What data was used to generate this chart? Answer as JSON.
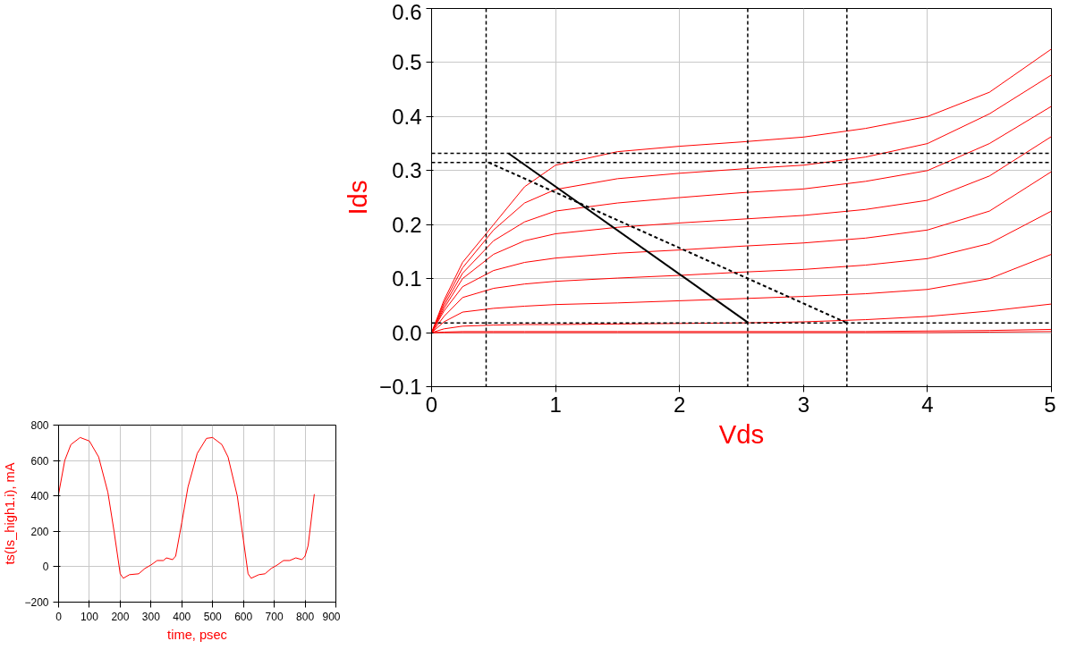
{
  "chart_data": [
    {
      "type": "line",
      "xlabel": "Vds",
      "ylabel": "Ids",
      "xlim": [
        0,
        5
      ],
      "ylim": [
        -0.1,
        0.6
      ],
      "xticks": [
        0,
        1,
        2,
        3,
        4,
        5
      ],
      "yticks": [
        -0.1,
        {
          "value": 0,
          "label": "0.0"
        },
        0.1,
        0.2,
        0.3,
        0.4,
        0.5,
        0.6
      ],
      "grid": true,
      "marker": "none",
      "x": [
        0,
        0.1,
        0.25,
        0.5,
        0.75,
        1,
        1.5,
        2,
        2.5,
        3,
        3.5,
        4,
        4.5,
        5
      ],
      "series": [
        {
          "color": "#ff0000",
          "values": [
            0,
            0.06,
            0.13,
            0.2,
            0.27,
            0.31,
            0.335,
            0.345,
            0.353,
            0.362,
            0.378,
            0.4,
            0.445,
            0.525
          ]
        },
        {
          "color": "#ff0000",
          "values": [
            0,
            0.055,
            0.12,
            0.19,
            0.24,
            0.265,
            0.285,
            0.295,
            0.303,
            0.31,
            0.325,
            0.35,
            0.405,
            0.477
          ]
        },
        {
          "color": "#ff0000",
          "values": [
            0,
            0.05,
            0.11,
            0.17,
            0.205,
            0.225,
            0.24,
            0.25,
            0.259,
            0.266,
            0.28,
            0.3,
            0.35,
            0.419
          ]
        },
        {
          "color": "#ff0000",
          "values": [
            0,
            0.045,
            0.1,
            0.145,
            0.17,
            0.183,
            0.195,
            0.203,
            0.21,
            0.217,
            0.228,
            0.245,
            0.29,
            0.363
          ]
        },
        {
          "color": "#ff0000",
          "values": [
            0,
            0.04,
            0.085,
            0.115,
            0.13,
            0.138,
            0.147,
            0.153,
            0.16,
            0.166,
            0.175,
            0.19,
            0.225,
            0.298
          ]
        },
        {
          "color": "#ff0000",
          "values": [
            0,
            0.03,
            0.065,
            0.082,
            0.09,
            0.095,
            0.101,
            0.106,
            0.112,
            0.117,
            0.125,
            0.137,
            0.165,
            0.225
          ]
        },
        {
          "color": "#ff0000",
          "values": [
            0,
            0.02,
            0.038,
            0.045,
            0.049,
            0.052,
            0.055,
            0.059,
            0.063,
            0.067,
            0.072,
            0.08,
            0.1,
            0.145
          ]
        },
        {
          "color": "#ff0000",
          "values": [
            0,
            0.007,
            0.012,
            0.014,
            0.015,
            0.015,
            0.016,
            0.017,
            0.018,
            0.02,
            0.024,
            0.03,
            0.04,
            0.053
          ]
        },
        {
          "color": "#ff0000",
          "values": [
            0,
            0.001,
            0.002,
            0.002,
            0.002,
            0.002,
            0.002,
            0.002,
            0.002,
            0.002,
            0.002,
            0.003,
            0.004,
            0.006
          ]
        },
        {
          "color": "#ff0000",
          "values": [
            0,
            0,
            0,
            0,
            0,
            0,
            0,
            0,
            0,
            0,
            0,
            0,
            0.001,
            0.002
          ]
        },
        {
          "color": "#000000",
          "x": [
            0.62,
            2.55
          ],
          "values": [
            0.332,
            0.019
          ],
          "line_style": "solid"
        },
        {
          "color": "#000000",
          "x": [
            0.46,
            3.35
          ],
          "values": [
            0.315,
            0.018
          ],
          "line_style": "dashed"
        }
      ],
      "ref_lines": [
        {
          "axis": "y",
          "value": 0.332,
          "color": "#000000",
          "line_style": "dashed"
        },
        {
          "axis": "y",
          "value": 0.315,
          "color": "#000000",
          "line_style": "dashed"
        },
        {
          "axis": "y",
          "value": 0.018,
          "color": "#000000",
          "line_style": "dashed"
        },
        {
          "axis": "x",
          "value": 0.44,
          "color": "#000000",
          "line_style": "dashed"
        },
        {
          "axis": "x",
          "value": 2.55,
          "color": "#000000",
          "line_style": "dashed"
        },
        {
          "axis": "x",
          "value": 3.35,
          "color": "#000000",
          "line_style": "dashed"
        }
      ]
    },
    {
      "type": "line",
      "xlabel": "time, psec",
      "ylabel": "ts(Is_high1.i), mA",
      "xlim": [
        0,
        900
      ],
      "ylim": [
        -200,
        800
      ],
      "xticks": [
        0,
        100,
        200,
        300,
        400,
        500,
        600,
        700,
        800,
        900
      ],
      "yticks": [
        -200,
        0,
        200,
        400,
        600,
        800
      ],
      "grid": true,
      "marker": "none",
      "x": [
        0,
        20,
        40,
        70,
        100,
        130,
        160,
        180,
        200,
        210,
        230,
        260,
        280,
        300,
        320,
        340,
        350,
        370,
        380,
        400,
        420,
        450,
        480,
        500,
        530,
        550,
        580,
        600,
        615,
        625,
        650,
        670,
        690,
        710,
        730,
        750,
        770,
        790,
        800,
        810,
        830
      ],
      "series": [
        {
          "color": "#ff0000",
          "values": [
            410,
            600,
            690,
            730,
            710,
            620,
            420,
            200,
            -40,
            -65,
            -45,
            -40,
            -10,
            10,
            35,
            35,
            50,
            40,
            60,
            250,
            450,
            640,
            725,
            730,
            690,
            620,
            400,
            150,
            -40,
            -65,
            -45,
            -40,
            -10,
            10,
            35,
            35,
            50,
            40,
            60,
            120,
            410
          ]
        }
      ]
    }
  ]
}
